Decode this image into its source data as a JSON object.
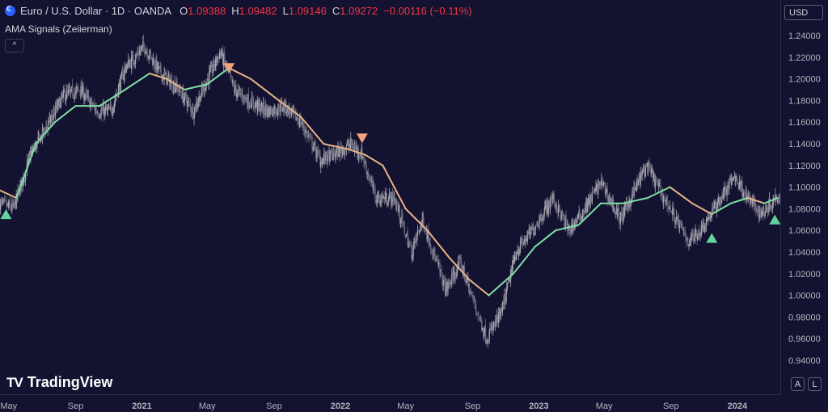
{
  "header": {
    "symbol": "Euro / U.S. Dollar · 1D · OANDA",
    "ohlc": [
      {
        "key": "O",
        "value": "1.09388"
      },
      {
        "key": "H",
        "value": "1.09482"
      },
      {
        "key": "L",
        "value": "1.09146"
      },
      {
        "key": "C",
        "value": "1.09272"
      }
    ],
    "change": "−0.00116 (−0.11%)",
    "indicator": "AMA Signals (Zeiierman)",
    "collapse_glyph": "^"
  },
  "currency": "USD",
  "scale_buttons": [
    "A",
    "L"
  ],
  "logo": {
    "mark": "TV",
    "text": "TradingView"
  },
  "colors": {
    "background": "#131230",
    "candle_up": "#a8a6b2",
    "candle_down": "#6e6d7e",
    "ama_bull": "#7ee0a5",
    "ama_bear": "#e8b487",
    "signal_buy": "#62d39c",
    "signal_sell": "#f2a17a",
    "axis_text": "#b2b5be"
  },
  "chart_data": {
    "type": "line",
    "title": "",
    "xlabel": "",
    "ylabel": "",
    "ylim": [
      0.92,
      1.25
    ],
    "y_ticks": [
      "1.24000",
      "1.22000",
      "1.20000",
      "1.18000",
      "1.16000",
      "1.14000",
      "1.12000",
      "1.10000",
      "1.08000",
      "1.06000",
      "1.04000",
      "1.02000",
      "1.00000",
      "0.98000",
      "0.96000",
      "0.94000"
    ],
    "x_ticks": [
      {
        "label": "May",
        "bold": false
      },
      {
        "label": "Sep",
        "bold": false
      },
      {
        "label": "2021",
        "bold": true
      },
      {
        "label": "May",
        "bold": false
      },
      {
        "label": "Sep",
        "bold": false
      },
      {
        "label": "2022",
        "bold": true
      },
      {
        "label": "May",
        "bold": false
      },
      {
        "label": "Sep",
        "bold": false
      },
      {
        "label": "2023",
        "bold": true
      },
      {
        "label": "May",
        "bold": false
      },
      {
        "label": "Sep",
        "bold": false
      },
      {
        "label": "2024",
        "bold": true
      }
    ],
    "x_tick_dates": [
      "2020-05-01",
      "2020-09-01",
      "2021-01-01",
      "2021-05-01",
      "2021-09-01",
      "2022-01-01",
      "2022-05-01",
      "2022-09-01",
      "2023-01-01",
      "2023-05-01",
      "2023-09-01",
      "2024-01-01"
    ],
    "x_range": [
      "2020-04-15",
      "2024-03-20"
    ],
    "grid": false,
    "price_series": {
      "name": "",
      "x": [
        "2020-04-15",
        "2020-05-10",
        "2020-06-10",
        "2020-07-15",
        "2020-08-10",
        "2020-09-10",
        "2020-10-10",
        "2020-11-05",
        "2020-12-01",
        "2021-01-05",
        "2021-02-05",
        "2021-03-10",
        "2021-04-05",
        "2021-05-25",
        "2021-06-20",
        "2021-07-15",
        "2021-08-20",
        "2021-09-20",
        "2021-10-20",
        "2021-11-25",
        "2021-12-20",
        "2022-01-20",
        "2022-02-10",
        "2022-03-07",
        "2022-04-10",
        "2022-05-12",
        "2022-06-01",
        "2022-07-14",
        "2022-08-10",
        "2022-08-30",
        "2022-09-27",
        "2022-10-25",
        "2022-11-20",
        "2022-12-20",
        "2023-01-26",
        "2023-02-25",
        "2023-03-20",
        "2023-04-25",
        "2023-05-31",
        "2023-07-18",
        "2023-08-25",
        "2023-10-03",
        "2023-10-25",
        "2023-12-27",
        "2024-01-20",
        "2024-02-14",
        "2024-03-15"
      ],
      "values": [
        1.085,
        1.08,
        1.13,
        1.16,
        1.185,
        1.19,
        1.17,
        1.17,
        1.21,
        1.23,
        1.205,
        1.19,
        1.17,
        1.225,
        1.19,
        1.18,
        1.17,
        1.175,
        1.16,
        1.125,
        1.13,
        1.14,
        1.13,
        1.09,
        1.09,
        1.04,
        1.07,
        1.005,
        1.03,
        1.0,
        0.96,
        0.985,
        1.04,
        1.06,
        1.09,
        1.06,
        1.075,
        1.105,
        1.07,
        1.12,
        1.085,
        1.05,
        1.06,
        1.11,
        1.09,
        1.075,
        1.093
      ]
    },
    "series": [
      {
        "name": "",
        "x": [
          "2020-04-15",
          "2020-05-15",
          "2020-06-20",
          "2020-07-25",
          "2020-09-01",
          "2020-10-15",
          "2020-12-01",
          "2021-01-15",
          "2021-02-15",
          "2021-03-20",
          "2021-05-01",
          "2021-06-10",
          "2021-07-20",
          "2021-09-10",
          "2021-10-20",
          "2021-12-01",
          "2022-01-15",
          "2022-02-15",
          "2022-03-20",
          "2022-05-01",
          "2022-06-10",
          "2022-07-20",
          "2022-08-25",
          "2022-10-01",
          "2022-11-15",
          "2022-12-25",
          "2023-02-01",
          "2023-03-15",
          "2023-04-25",
          "2023-06-05",
          "2023-07-20",
          "2023-08-30",
          "2023-10-10",
          "2023-11-15",
          "2023-12-20",
          "2024-01-20",
          "2024-02-20",
          "2024-03-15"
        ],
        "values": [
          1.097,
          1.09,
          1.14,
          1.16,
          1.175,
          1.175,
          1.19,
          1.205,
          1.2,
          1.19,
          1.195,
          1.21,
          1.2,
          1.18,
          1.165,
          1.14,
          1.135,
          1.13,
          1.12,
          1.08,
          1.06,
          1.035,
          1.015,
          1.0,
          1.02,
          1.045,
          1.06,
          1.065,
          1.085,
          1.085,
          1.09,
          1.1,
          1.085,
          1.075,
          1.085,
          1.09,
          1.085,
          1.09
        ]
      }
    ],
    "signals": [
      {
        "type": "buy",
        "x": "2020-04-26",
        "y": 1.075
      },
      {
        "type": "sell",
        "x": "2021-06-10",
        "y": 1.21
      },
      {
        "type": "sell",
        "x": "2022-02-10",
        "y": 1.145
      },
      {
        "type": "buy",
        "x": "2023-11-15",
        "y": 1.053
      },
      {
        "type": "buy",
        "x": "2024-03-10",
        "y": 1.07
      }
    ]
  }
}
